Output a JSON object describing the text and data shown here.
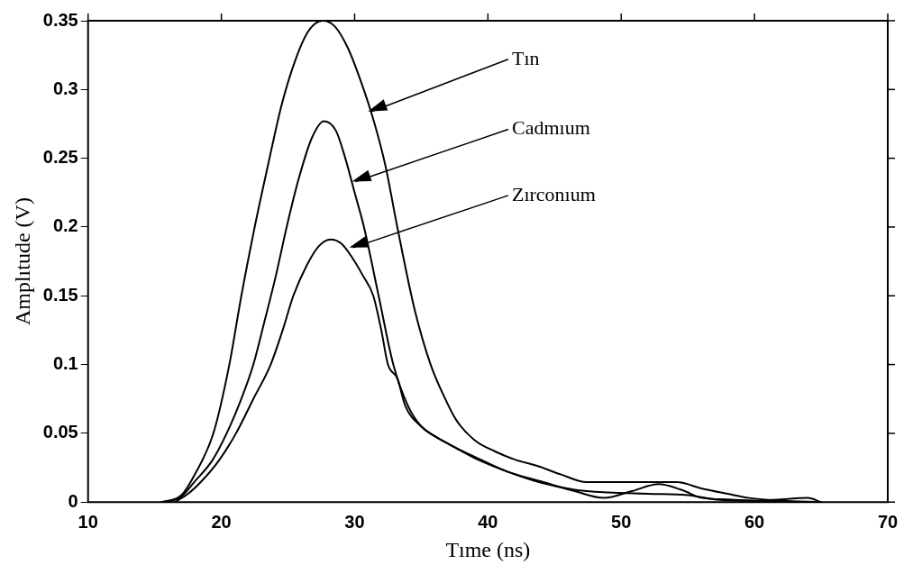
{
  "chart_data": {
    "type": "line",
    "xlabel": "Tıme (ns)",
    "ylabel": "Amplıtude (V)",
    "xlim": [
      10,
      70
    ],
    "xticks": [
      10,
      20,
      30,
      40,
      50,
      60,
      70
    ],
    "ylim": [
      0,
      0.35
    ],
    "yticks": [
      0,
      0.05,
      0.1,
      0.15,
      0.2,
      0.25,
      0.3,
      0.35
    ],
    "grid": false,
    "legend": false,
    "marker": "none",
    "line_style": "solid",
    "series": [
      {
        "color": "#000000",
        "x": [
          15.5,
          17,
          18,
          19.4,
          20.6,
          21.5,
          22.5,
          23.5,
          24.5,
          25.5,
          26.5,
          27.6,
          28.5,
          29.5,
          30.5,
          31.5,
          32.3,
          33.2,
          34.5,
          35.7,
          36.8,
          37.6,
          39,
          40.5,
          42,
          43.8,
          45.5,
          47.4,
          51,
          54.2,
          56,
          58,
          59.6,
          62,
          65
        ],
        "values": [
          0,
          0.005,
          0.02,
          0.05,
          0.1,
          0.15,
          0.2,
          0.245,
          0.288,
          0.32,
          0.342,
          0.35,
          0.346,
          0.33,
          0.305,
          0.275,
          0.245,
          0.2,
          0.14,
          0.1,
          0.075,
          0.06,
          0.045,
          0.037,
          0.031,
          0.026,
          0.02,
          0.0145,
          0.0145,
          0.0145,
          0.01,
          0.006,
          0.003,
          0.001,
          0
        ]
      },
      {
        "color": "#000000",
        "x": [
          16,
          17,
          18,
          19.3,
          20.4,
          21.5,
          22.4,
          23.2,
          24.1,
          24.9,
          25.8,
          26.8,
          27.7,
          28.6,
          29.3,
          30,
          30.7,
          31.8,
          32.9,
          34,
          35,
          36,
          37.1,
          39,
          41.5,
          44,
          46.5,
          49,
          52,
          55,
          57,
          60,
          62,
          64,
          65
        ],
        "values": [
          0,
          0.004,
          0.015,
          0.03,
          0.05,
          0.075,
          0.1,
          0.13,
          0.165,
          0.2,
          0.235,
          0.265,
          0.277,
          0.27,
          0.25,
          0.225,
          0.2,
          0.15,
          0.1,
          0.07,
          0.055,
          0.048,
          0.042,
          0.032,
          0.022,
          0.014,
          0.009,
          0.007,
          0.006,
          0.005,
          0.002,
          0.001,
          0.002,
          0.003,
          0
        ]
      },
      {
        "color": "#000000",
        "x": [
          16.5,
          17.5,
          18.5,
          19.8,
          21.1,
          22.4,
          23.7,
          24.6,
          25.4,
          26.4,
          27.3,
          28.2,
          29,
          29.8,
          30.6,
          31.4,
          32,
          32.5,
          33.2,
          33.8,
          35,
          37.1,
          39,
          41.5,
          44,
          46.5,
          48.7,
          50.8,
          52.8,
          54.5,
          56.1,
          58,
          60,
          62
        ],
        "values": [
          0,
          0.006,
          0.015,
          0.03,
          0.05,
          0.075,
          0.1,
          0.125,
          0.15,
          0.172,
          0.186,
          0.191,
          0.188,
          0.178,
          0.165,
          0.15,
          0.125,
          0.1,
          0.09,
          0.07,
          0.055,
          0.042,
          0.033,
          0.022,
          0.015,
          0.008,
          0.003,
          0.008,
          0.013,
          0.009,
          0.003,
          0.002,
          0.001,
          0
        ]
      }
    ],
    "annotations": [
      {
        "text": "Tın",
        "x": 31,
        "y": 0.284
      },
      {
        "text": "Cadmıum",
        "x": 29.8,
        "y": 0.233
      },
      {
        "text": "Zırconıum",
        "x": 29.6,
        "y": 0.185
      }
    ]
  }
}
